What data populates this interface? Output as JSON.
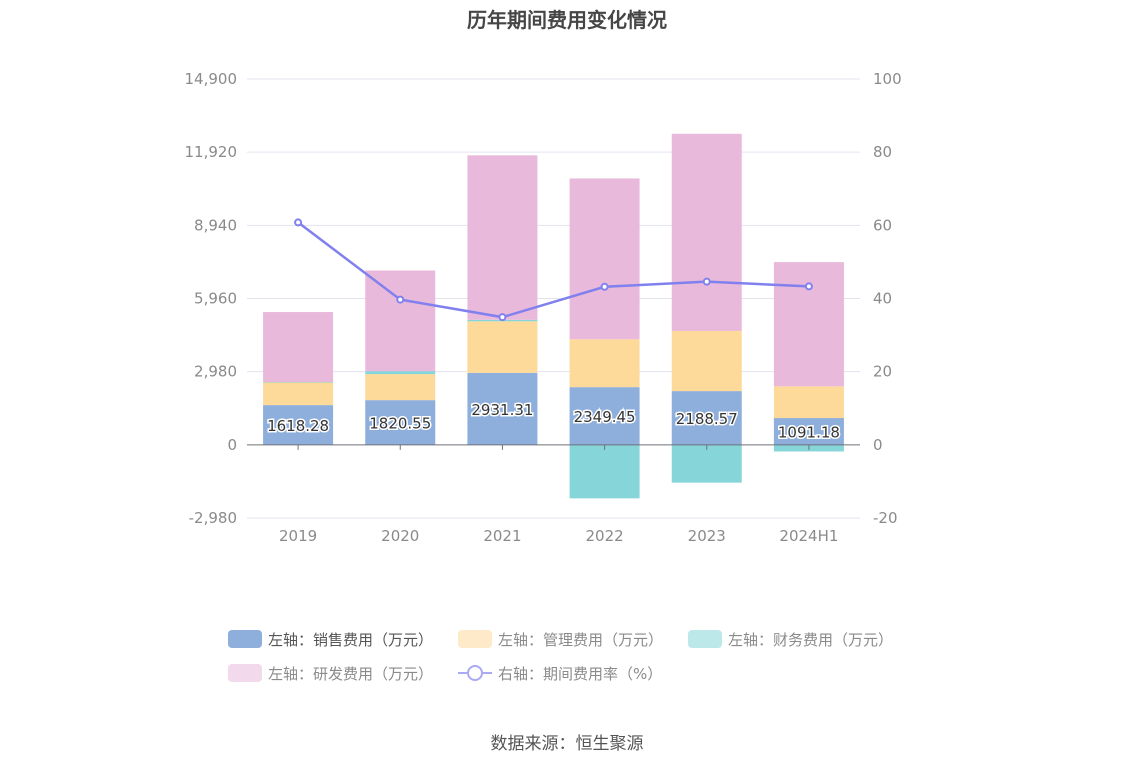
{
  "chart_data": {
    "type": "bar",
    "title": "历年期间费用变化情况",
    "categories": [
      "2019",
      "2020",
      "2021",
      "2022",
      "2023",
      "2024H1"
    ],
    "series": [
      {
        "name": "左轴：销售费用（万元）",
        "axis": "left",
        "color": "#8eaedb",
        "values": [
          1618.28,
          1820.55,
          2931.31,
          2349.45,
          2188.57,
          1091.18
        ],
        "labels": [
          "1618.28",
          "1820.55",
          "2931.31",
          "2349.45",
          "2188.57",
          "1091.18"
        ]
      },
      {
        "name": "左轴：管理费用（万元）",
        "axis": "left",
        "color": "#fdd99a",
        "values": [
          920,
          1060,
          2100,
          1950,
          2450,
          1290
        ]
      },
      {
        "name": "左轴：财务费用（万元）",
        "axis": "left",
        "color": "#86d5d8",
        "values": [
          20,
          120,
          60,
          -2180,
          -1540,
          -270
        ]
      },
      {
        "name": "左轴：研发费用（万元）",
        "axis": "left",
        "color": "#e8b9da",
        "values": [
          2850,
          4100,
          6700,
          6550,
          8030,
          5060
        ]
      },
      {
        "name": "右轴：期间费用率（%）",
        "axis": "right",
        "type": "line",
        "color": "#8080ee",
        "values": [
          60.8,
          39.7,
          34.9,
          43.2,
          44.6,
          43.3
        ]
      }
    ],
    "left_axis": {
      "ylim": [
        -2980,
        14900
      ],
      "ticks": [
        "14,900",
        "11,920",
        "8,940",
        "5,960",
        "2,980",
        "0",
        "-2,980"
      ]
    },
    "right_axis": {
      "ylim": [
        -20,
        100
      ],
      "ticks": [
        "100",
        "80",
        "60",
        "40",
        "20",
        "0",
        "-20"
      ]
    },
    "grid": true,
    "legend_position": "bottom"
  },
  "source": "数据来源：恒生聚源"
}
